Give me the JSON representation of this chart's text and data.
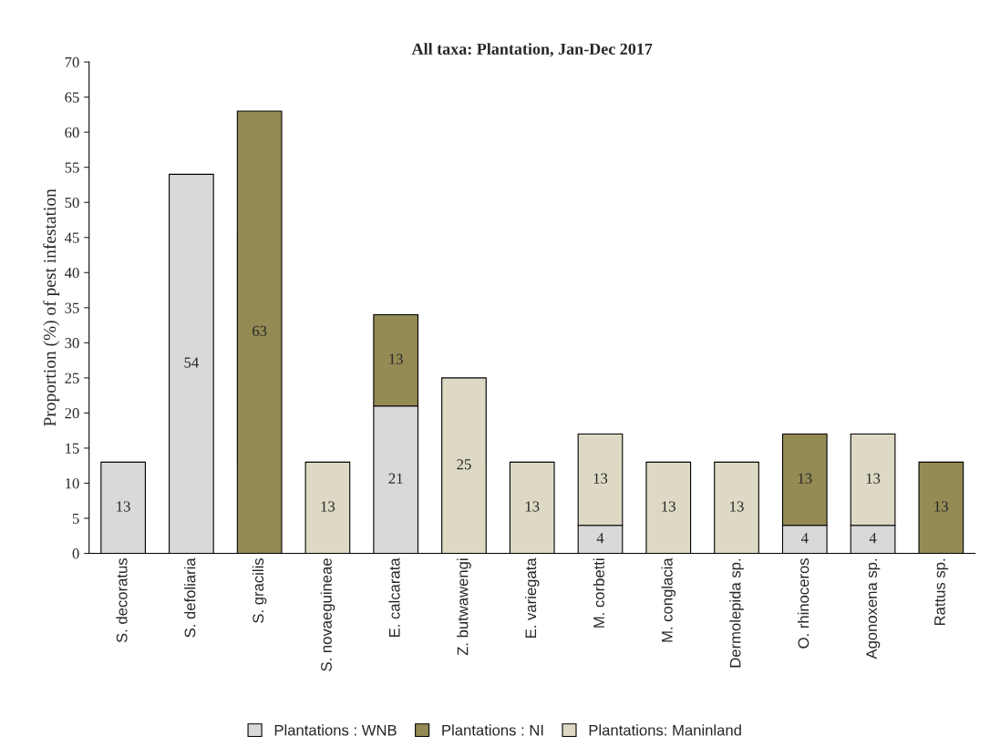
{
  "chart_data": {
    "type": "bar",
    "title": "All taxa: Plantation, Jan-Dec 2017",
    "ylabel": "Proportion (%) of pest infestation",
    "categories": [
      "S. decoratus",
      "S. defoliaria",
      "S. gracilis",
      "S. novaeguineae",
      "E. calcarata",
      "Z. butwawengi",
      "E. variegata",
      "M. corbetti",
      "M. conglacia",
      "Dermolepida sp.",
      "O. rhinoceros",
      "Agonoxena sp.",
      "Rattus sp."
    ],
    "series": [
      {
        "name": "Plantations : WNB",
        "color": "#d9d9d9",
        "values": [
          13,
          54,
          null,
          null,
          21,
          null,
          null,
          4,
          null,
          null,
          4,
          4,
          null
        ]
      },
      {
        "name": "Plantations : NI",
        "color": "#948a54",
        "values": [
          null,
          null,
          63,
          null,
          13,
          null,
          null,
          null,
          null,
          null,
          13,
          null,
          13
        ]
      },
      {
        "name": "Plantations: Maninland",
        "color": "#ddd9c4",
        "values": [
          null,
          null,
          null,
          13,
          null,
          25,
          13,
          13,
          13,
          13,
          null,
          13,
          null
        ]
      }
    ],
    "stacked": true,
    "data_labels": true,
    "ylim": [
      0,
      70
    ],
    "yticks": [
      0,
      5,
      10,
      15,
      20,
      25,
      30,
      35,
      40,
      45,
      50,
      55,
      60,
      65,
      70
    ],
    "grid": false,
    "legend": "bottom"
  }
}
